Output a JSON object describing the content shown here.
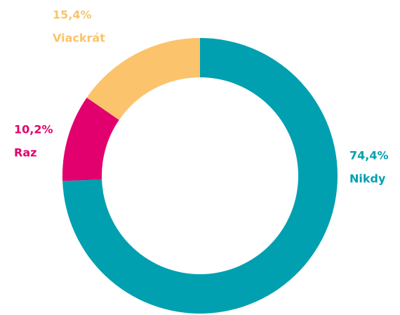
{
  "chart_data": {
    "type": "donut",
    "categories": [
      "Nikdy",
      "Raz",
      "Viackrát"
    ],
    "values": [
      74.4,
      10.2,
      15.4
    ],
    "value_labels": [
      "74,4%",
      "10,2%",
      "15,4%"
    ],
    "colors": [
      "#00a0b0",
      "#e2006e",
      "#fbc36b"
    ]
  }
}
